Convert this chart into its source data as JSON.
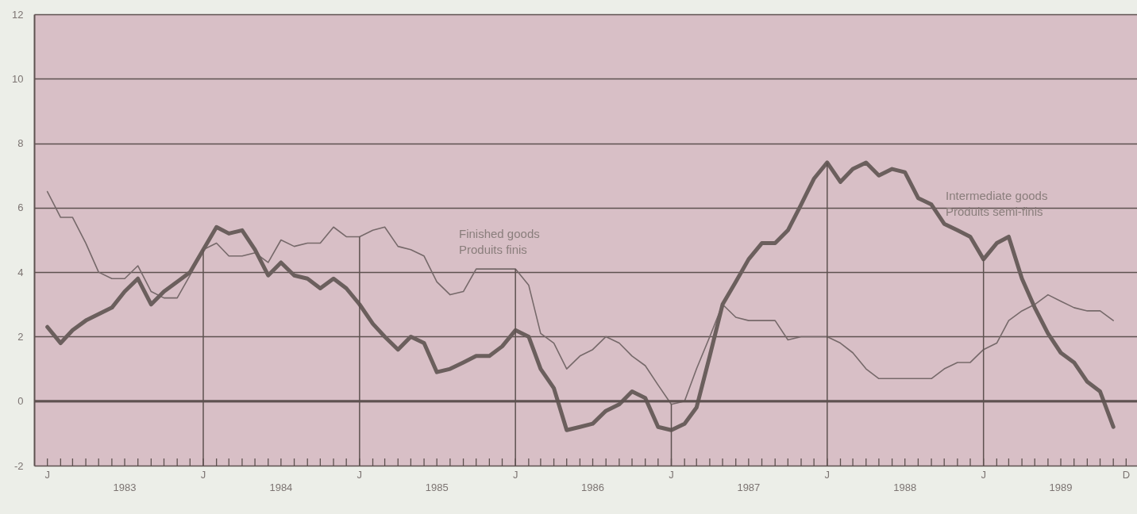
{
  "chart_data": {
    "type": "line",
    "x": [
      "1983-01",
      "1983-02",
      "1983-03",
      "1983-04",
      "1983-05",
      "1983-06",
      "1983-07",
      "1983-08",
      "1983-09",
      "1983-10",
      "1983-11",
      "1983-12",
      "1984-01",
      "1984-02",
      "1984-03",
      "1984-04",
      "1984-05",
      "1984-06",
      "1984-07",
      "1984-08",
      "1984-09",
      "1984-10",
      "1984-11",
      "1984-12",
      "1985-01",
      "1985-02",
      "1985-03",
      "1985-04",
      "1985-05",
      "1985-06",
      "1985-07",
      "1985-08",
      "1985-09",
      "1985-10",
      "1985-11",
      "1985-12",
      "1986-01",
      "1986-02",
      "1986-03",
      "1986-04",
      "1986-05",
      "1986-06",
      "1986-07",
      "1986-08",
      "1986-09",
      "1986-10",
      "1986-11",
      "1986-12",
      "1987-01",
      "1987-02",
      "1987-03",
      "1987-04",
      "1987-05",
      "1987-06",
      "1987-07",
      "1987-08",
      "1987-09",
      "1987-10",
      "1987-11",
      "1987-12",
      "1988-01",
      "1988-02",
      "1988-03",
      "1988-04",
      "1988-05",
      "1988-06",
      "1988-07",
      "1988-08",
      "1988-09",
      "1988-10",
      "1988-11",
      "1988-12",
      "1989-01",
      "1989-02",
      "1989-03",
      "1989-04",
      "1989-05",
      "1989-06",
      "1989-07",
      "1989-08",
      "1989-09",
      "1989-10",
      "1989-11"
    ],
    "series": [
      {
        "name": "Finished goods\nProduits finis",
        "color": "#76696a",
        "values": [
          6.5,
          5.7,
          5.7,
          4.9,
          4.0,
          3.8,
          3.8,
          4.2,
          3.4,
          3.2,
          3.2,
          3.9,
          4.7,
          4.9,
          4.5,
          4.5,
          4.6,
          4.3,
          5.0,
          4.8,
          4.9,
          4.9,
          5.4,
          5.1,
          5.1,
          5.3,
          5.4,
          4.8,
          4.7,
          4.5,
          3.7,
          3.3,
          3.4,
          4.1,
          4.1,
          4.1,
          4.1,
          3.6,
          2.1,
          1.8,
          1.0,
          1.4,
          1.6,
          2.0,
          1.8,
          1.4,
          1.1,
          0.5,
          -0.1,
          0.0,
          1.0,
          2.0,
          3.0,
          2.6,
          2.5,
          2.5,
          2.5,
          1.9,
          2.0,
          2.0,
          2.0,
          1.8,
          1.5,
          1.0,
          0.7,
          0.7,
          0.7,
          0.7,
          0.7,
          1.0,
          1.2,
          1.2,
          1.6,
          1.8,
          2.5,
          2.8,
          3.0,
          3.3,
          3.1,
          2.9,
          2.8,
          2.8,
          2.5
        ]
      },
      {
        "name": "Intermediate goods\nProduits semi-finis",
        "color": "#6b5f5d",
        "values": [
          2.3,
          1.8,
          2.2,
          2.5,
          2.7,
          2.9,
          3.4,
          3.8,
          3.0,
          3.4,
          3.7,
          4.0,
          4.7,
          5.4,
          5.2,
          5.3,
          4.7,
          3.9,
          4.3,
          3.9,
          3.8,
          3.5,
          3.8,
          3.5,
          3.0,
          2.4,
          2.0,
          1.6,
          2.0,
          1.8,
          0.9,
          1.0,
          1.2,
          1.4,
          1.4,
          1.7,
          2.2,
          2.0,
          1.0,
          0.4,
          -0.9,
          -0.8,
          -0.7,
          -0.3,
          -0.1,
          0.3,
          0.1,
          -0.8,
          -0.9,
          -0.7,
          -0.2,
          1.4,
          3.0,
          3.7,
          4.4,
          4.9,
          4.9,
          5.3,
          6.1,
          6.9,
          7.4,
          6.8,
          7.2,
          7.4,
          7.0,
          7.2,
          7.1,
          6.3,
          6.1,
          5.5,
          5.3,
          5.1,
          4.4,
          4.9,
          5.1,
          3.8,
          2.9,
          2.1,
          1.5,
          1.2,
          0.6,
          0.3,
          -0.8
        ]
      }
    ],
    "xlim": [
      "1982-12",
      "1990-01"
    ],
    "xticks": [
      {
        "value": "1983-01",
        "label": null
      },
      {
        "value": "1983-02",
        "label": null
      },
      {
        "value": "1983-03",
        "label": null
      },
      {
        "value": "1983-04",
        "label": null
      },
      {
        "value": "1983-05",
        "label": null
      },
      {
        "value": "1983-06",
        "label": null
      },
      {
        "value": "1983-07",
        "label": "1983"
      },
      {
        "value": "1983-08",
        "label": null
      },
      {
        "value": "1983-09",
        "label": null
      },
      {
        "value": "1983-10",
        "label": null
      },
      {
        "value": "1983-11",
        "label": null
      },
      {
        "value": "1983-12",
        "label": null
      },
      {
        "value": "1984-01",
        "label": null
      },
      {
        "value": "1984-02",
        "label": null
      },
      {
        "value": "1984-03",
        "label": null
      },
      {
        "value": "1984-04",
        "label": null
      },
      {
        "value": "1984-05",
        "label": null
      },
      {
        "value": "1984-06",
        "label": null
      },
      {
        "value": "1984-07",
        "label": "1984"
      },
      {
        "value": "1984-08",
        "label": null
      },
      {
        "value": "1984-09",
        "label": null
      },
      {
        "value": "1984-10",
        "label": null
      },
      {
        "value": "1984-11",
        "label": null
      },
      {
        "value": "1984-12",
        "label": null
      },
      {
        "value": "1985-01",
        "label": null
      },
      {
        "value": "1985-02",
        "label": null
      },
      {
        "value": "1985-03",
        "label": null
      },
      {
        "value": "1985-04",
        "label": null
      },
      {
        "value": "1985-05",
        "label": null
      },
      {
        "value": "1985-06",
        "label": null
      },
      {
        "value": "1985-07",
        "label": "1985"
      },
      {
        "value": "1985-08",
        "label": null
      },
      {
        "value": "1985-09",
        "label": null
      },
      {
        "value": "1985-10",
        "label": null
      },
      {
        "value": "1985-11",
        "label": null
      },
      {
        "value": "1985-12",
        "label": null
      },
      {
        "value": "1986-01",
        "label": null
      },
      {
        "value": "1986-02",
        "label": null
      },
      {
        "value": "1986-03",
        "label": null
      },
      {
        "value": "1986-04",
        "label": null
      },
      {
        "value": "1986-05",
        "label": null
      },
      {
        "value": "1986-06",
        "label": null
      },
      {
        "value": "1986-07",
        "label": "1986"
      },
      {
        "value": "1986-08",
        "label": null
      },
      {
        "value": "1986-09",
        "label": null
      },
      {
        "value": "1986-10",
        "label": null
      },
      {
        "value": "1986-11",
        "label": null
      },
      {
        "value": "1986-12",
        "label": null
      },
      {
        "value": "1987-01",
        "label": null
      },
      {
        "value": "1987-02",
        "label": null
      },
      {
        "value": "1987-03",
        "label": null
      },
      {
        "value": "1987-04",
        "label": null
      },
      {
        "value": "1987-05",
        "label": null
      },
      {
        "value": "1987-06",
        "label": null
      },
      {
        "value": "1987-07",
        "label": "1987"
      },
      {
        "value": "1987-08",
        "label": null
      },
      {
        "value": "1987-09",
        "label": null
      },
      {
        "value": "1987-10",
        "label": null
      },
      {
        "value": "1987-11",
        "label": null
      },
      {
        "value": "1987-12",
        "label": null
      },
      {
        "value": "1988-01",
        "label": null
      },
      {
        "value": "1988-02",
        "label": null
      },
      {
        "value": "1988-03",
        "label": null
      },
      {
        "value": "1988-04",
        "label": null
      },
      {
        "value": "1988-05",
        "label": null
      },
      {
        "value": "1988-06",
        "label": null
      },
      {
        "value": "1988-07",
        "label": "1988"
      },
      {
        "value": "1988-08",
        "label": null
      },
      {
        "value": "1988-09",
        "label": null
      },
      {
        "value": "1988-10",
        "label": null
      },
      {
        "value": "1988-11",
        "label": null
      },
      {
        "value": "1988-12",
        "label": null
      },
      {
        "value": "1989-01",
        "label": null
      },
      {
        "value": "1989-02",
        "label": null
      },
      {
        "value": "1989-03",
        "label": null
      },
      {
        "value": "1989-04",
        "label": null
      },
      {
        "value": "1989-05",
        "label": null
      },
      {
        "value": "1989-06",
        "label": null
      },
      {
        "value": "1989-07",
        "label": "1989"
      },
      {
        "value": "1989-08",
        "label": null
      },
      {
        "value": "1989-09",
        "label": null
      },
      {
        "value": "1989-10",
        "label": null
      },
      {
        "value": "1989-11",
        "label": null
      },
      {
        "value": "1989-12",
        "label": null
      }
    ],
    "annotations": [
      "J",
      "J",
      "J",
      "J",
      "J",
      "J",
      "J",
      "D"
    ],
    "ylim": [
      -2,
      12
    ],
    "yticks": [
      -2,
      0,
      2,
      4,
      6,
      8,
      10,
      12
    ],
    "ref_lines": [
      {
        "axis": "y",
        "value": 0,
        "color": "#5e5250"
      },
      {
        "axis": "x",
        "value": "1984-01",
        "color": "#5e5250"
      },
      {
        "axis": "x",
        "value": "1985-01",
        "color": "#5e5250"
      },
      {
        "axis": "x",
        "value": "1986-01",
        "color": "#5e5250"
      },
      {
        "axis": "x",
        "value": "1987-01",
        "color": "#5e5250"
      },
      {
        "axis": "x",
        "value": "1988-01",
        "color": "#5e5250"
      },
      {
        "axis": "x",
        "value": "1989-01",
        "color": "#5e5250"
      }
    ],
    "grid": true
  }
}
